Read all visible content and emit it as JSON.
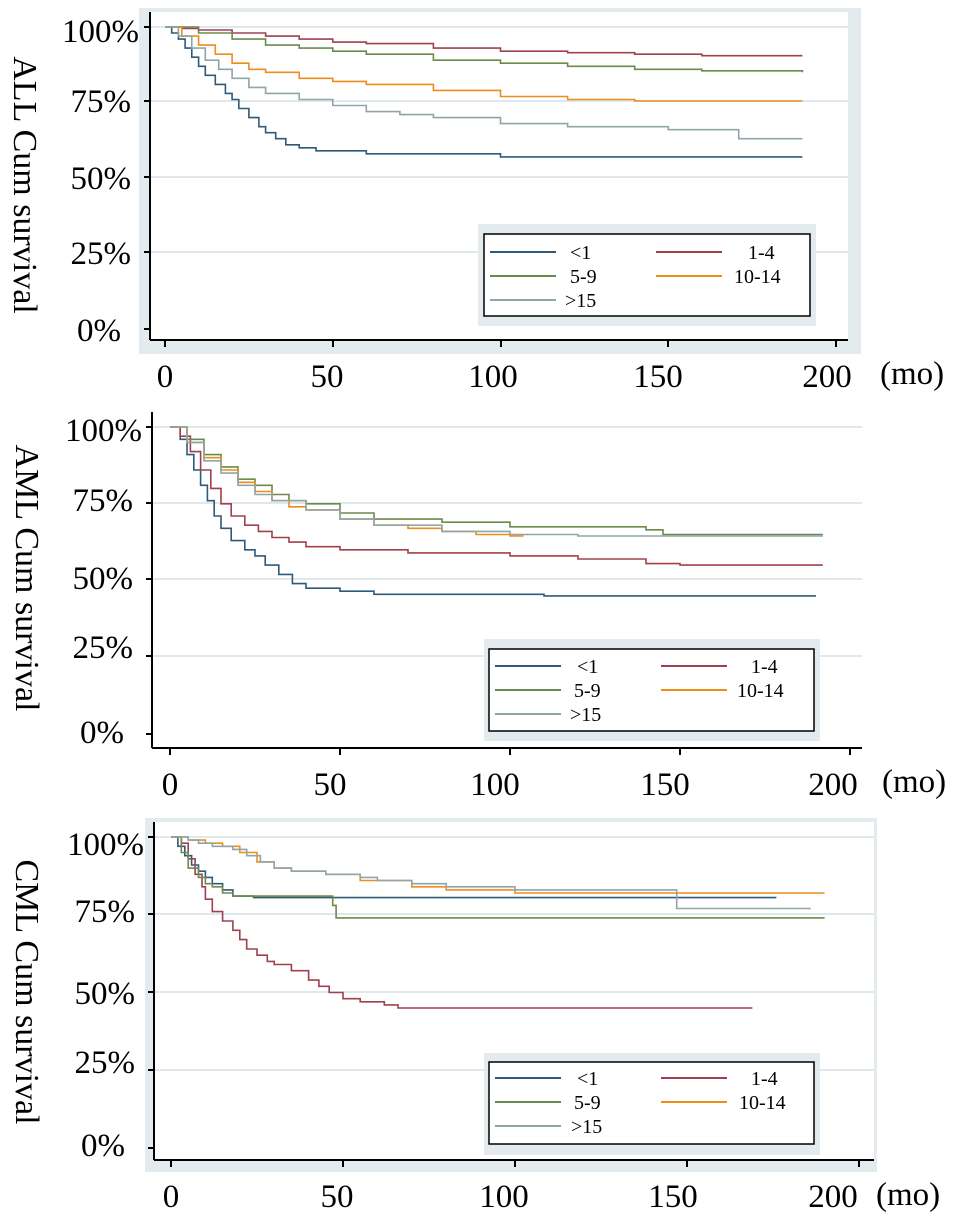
{
  "colors": {
    "frame_bg": "#e4ebee",
    "plot_bg": "#ffffff",
    "grid": "#dfe8eb",
    "axis": "#000000"
  },
  "chart_data": [
    {
      "type": "line",
      "step": true,
      "title": "",
      "ylabel": "ALL Cum survival",
      "xlabel": "",
      "x_unit": "(mo)",
      "xlim": [
        0,
        200
      ],
      "ylim": [
        0,
        100
      ],
      "x_ticks": [
        "0",
        "50",
        "100",
        "150",
        "200"
      ],
      "y_ticks": [
        "0%",
        "25%",
        "50%",
        "75%",
        "100%"
      ],
      "grid": true,
      "legend": {
        "position": "bottom-right",
        "columns": 2
      },
      "series": [
        {
          "name": "<1",
          "color": "#2f5a7a",
          "points": [
            [
              0,
              100
            ],
            [
              2,
              98
            ],
            [
              4,
              96
            ],
            [
              6,
              93
            ],
            [
              8,
              90
            ],
            [
              10,
              87
            ],
            [
              12,
              84
            ],
            [
              15,
              81
            ],
            [
              18,
              78
            ],
            [
              20,
              76
            ],
            [
              22,
              73
            ],
            [
              25,
              70
            ],
            [
              28,
              67
            ],
            [
              30,
              65
            ],
            [
              33,
              63
            ],
            [
              36,
              61
            ],
            [
              40,
              60
            ],
            [
              45,
              59
            ],
            [
              60,
              58
            ],
            [
              100,
              57
            ],
            [
              190,
              57
            ]
          ]
        },
        {
          "name": "1-4",
          "color": "#a0404f",
          "points": [
            [
              0,
              100
            ],
            [
              5,
              99.5
            ],
            [
              10,
              99
            ],
            [
              20,
              98
            ],
            [
              30,
              97
            ],
            [
              40,
              96
            ],
            [
              50,
              95
            ],
            [
              60,
              94.5
            ],
            [
              80,
              93
            ],
            [
              100,
              92
            ],
            [
              120,
              91.5
            ],
            [
              140,
              91
            ],
            [
              160,
              90.5
            ],
            [
              190,
              90.5
            ]
          ]
        },
        {
          "name": "5-9",
          "color": "#6b8a4b",
          "points": [
            [
              0,
              100
            ],
            [
              10,
              98
            ],
            [
              20,
              96
            ],
            [
              30,
              94
            ],
            [
              40,
              93
            ],
            [
              50,
              92
            ],
            [
              60,
              91
            ],
            [
              80,
              89
            ],
            [
              100,
              88
            ],
            [
              120,
              87
            ],
            [
              140,
              86
            ],
            [
              160,
              85.5
            ],
            [
              190,
              85
            ]
          ]
        },
        {
          "name": "10-14",
          "color": "#ee8c1c",
          "points": [
            [
              0,
              100
            ],
            [
              5,
              97
            ],
            [
              10,
              94
            ],
            [
              15,
              91
            ],
            [
              20,
              88
            ],
            [
              25,
              86
            ],
            [
              30,
              85
            ],
            [
              40,
              83
            ],
            [
              50,
              82
            ],
            [
              60,
              81
            ],
            [
              80,
              79
            ],
            [
              100,
              77
            ],
            [
              120,
              76
            ],
            [
              140,
              75.5
            ],
            [
              190,
              75.5
            ]
          ]
        },
        {
          "name": ">15",
          "color": "#8fa6a8",
          "points": [
            [
              0,
              100
            ],
            [
              4,
              97
            ],
            [
              8,
              93
            ],
            [
              12,
              89
            ],
            [
              16,
              86
            ],
            [
              20,
              83
            ],
            [
              25,
              80
            ],
            [
              30,
              78
            ],
            [
              40,
              76
            ],
            [
              50,
              74
            ],
            [
              60,
              72
            ],
            [
              70,
              71
            ],
            [
              80,
              70
            ],
            [
              100,
              68
            ],
            [
              120,
              67
            ],
            [
              150,
              66
            ],
            [
              170,
              66
            ],
            [
              171,
              63
            ],
            [
              190,
              63
            ]
          ]
        }
      ]
    },
    {
      "type": "line",
      "step": true,
      "title": "",
      "ylabel": "AML Cum survival",
      "xlabel": "",
      "x_unit": "(mo)",
      "xlim": [
        0,
        200
      ],
      "ylim": [
        0,
        100
      ],
      "x_ticks": [
        "0",
        "50",
        "100",
        "150",
        "200"
      ],
      "y_ticks": [
        "0%",
        "25%",
        "50%",
        "75%",
        "100%"
      ],
      "grid": true,
      "legend": {
        "position": "bottom-right",
        "columns": 2
      },
      "series": [
        {
          "name": "<1",
          "color": "#2f5a7a",
          "points": [
            [
              0,
              100
            ],
            [
              3,
              96
            ],
            [
              5,
              91
            ],
            [
              7,
              86
            ],
            [
              9,
              81
            ],
            [
              11,
              76
            ],
            [
              13,
              71
            ],
            [
              15,
              67
            ],
            [
              18,
              63
            ],
            [
              22,
              60
            ],
            [
              25,
              58
            ],
            [
              28,
              55
            ],
            [
              32,
              52
            ],
            [
              36,
              49
            ],
            [
              40,
              47.5
            ],
            [
              50,
              46.5
            ],
            [
              60,
              45.5
            ],
            [
              110,
              45
            ],
            [
              190,
              45
            ]
          ]
        },
        {
          "name": "1-4",
          "color": "#a0404f",
          "points": [
            [
              0,
              100
            ],
            [
              3,
              97
            ],
            [
              6,
              92
            ],
            [
              9,
              86
            ],
            [
              12,
              80
            ],
            [
              15,
              75
            ],
            [
              18,
              71
            ],
            [
              22,
              68
            ],
            [
              26,
              66
            ],
            [
              30,
              64
            ],
            [
              35,
              62.5
            ],
            [
              40,
              61
            ],
            [
              50,
              60
            ],
            [
              70,
              59
            ],
            [
              100,
              58
            ],
            [
              120,
              57
            ],
            [
              140,
              55.5
            ],
            [
              150,
              55
            ],
            [
              192,
              55
            ]
          ]
        },
        {
          "name": "5-9",
          "color": "#6b8a4b",
          "points": [
            [
              0,
              100
            ],
            [
              5,
              96
            ],
            [
              10,
              91
            ],
            [
              15,
              87
            ],
            [
              20,
              83
            ],
            [
              25,
              81
            ],
            [
              30,
              78
            ],
            [
              35,
              76
            ],
            [
              40,
              75
            ],
            [
              50,
              72
            ],
            [
              60,
              70
            ],
            [
              80,
              69
            ],
            [
              100,
              67.5
            ],
            [
              140,
              66.5
            ],
            [
              145,
              65
            ],
            [
              192,
              65
            ]
          ]
        },
        {
          "name": "10-14",
          "color": "#ee8c1c",
          "points": [
            [
              0,
              100
            ],
            [
              5,
              95
            ],
            [
              10,
              90
            ],
            [
              15,
              86
            ],
            [
              20,
              82
            ],
            [
              25,
              79
            ],
            [
              30,
              76
            ],
            [
              35,
              74
            ],
            [
              40,
              73
            ],
            [
              50,
              70
            ],
            [
              60,
              68
            ],
            [
              70,
              67
            ],
            [
              80,
              66
            ],
            [
              90,
              65
            ],
            [
              100,
              64.5
            ],
            [
              104,
              64.5
            ]
          ]
        },
        {
          "name": ">15",
          "color": "#8fa6a8",
          "points": [
            [
              0,
              100
            ],
            [
              5,
              95
            ],
            [
              10,
              89
            ],
            [
              15,
              85
            ],
            [
              20,
              81
            ],
            [
              25,
              78
            ],
            [
              30,
              76
            ],
            [
              40,
              73
            ],
            [
              50,
              70
            ],
            [
              60,
              68
            ],
            [
              80,
              66
            ],
            [
              100,
              65
            ],
            [
              120,
              64.5
            ],
            [
              192,
              64.5
            ]
          ]
        }
      ]
    },
    {
      "type": "line",
      "step": true,
      "title": "",
      "ylabel": "CML Cum survival",
      "xlabel": "",
      "x_unit": "(mo)",
      "xlim": [
        0,
        200
      ],
      "ylim": [
        0,
        100
      ],
      "x_ticks": [
        "0",
        "50",
        "100",
        "150",
        "200"
      ],
      "y_ticks": [
        "0%",
        "25%",
        "50%",
        "75%",
        "100%"
      ],
      "grid": true,
      "legend": {
        "position": "bottom-right",
        "columns": 2
      },
      "series": [
        {
          "name": "<1",
          "color": "#2f5a7a",
          "points": [
            [
              0,
              100
            ],
            [
              2,
              97
            ],
            [
              4,
              94
            ],
            [
              6,
              91
            ],
            [
              8,
              89
            ],
            [
              10,
              87
            ],
            [
              12,
              85
            ],
            [
              15,
              83
            ],
            [
              18,
              81
            ],
            [
              24,
              80.5
            ],
            [
              60,
              80.5
            ],
            [
              176,
              80.5
            ]
          ]
        },
        {
          "name": "1-4",
          "color": "#a0404f",
          "points": [
            [
              0,
              100
            ],
            [
              3,
              98
            ],
            [
              5,
              93
            ],
            [
              7,
              88
            ],
            [
              9,
              84
            ],
            [
              10,
              80
            ],
            [
              12,
              76
            ],
            [
              15,
              73
            ],
            [
              18,
              70
            ],
            [
              20,
              67
            ],
            [
              22,
              64
            ],
            [
              25,
              62
            ],
            [
              28,
              60
            ],
            [
              30,
              59
            ],
            [
              35,
              57
            ],
            [
              40,
              54
            ],
            [
              43,
              52
            ],
            [
              46,
              50
            ],
            [
              50,
              48
            ],
            [
              55,
              47
            ],
            [
              62,
              46
            ],
            [
              66,
              45
            ],
            [
              169,
              45
            ]
          ]
        },
        {
          "name": "5-9",
          "color": "#6b8a4b",
          "points": [
            [
              0,
              100
            ],
            [
              3,
              95
            ],
            [
              5,
              90
            ],
            [
              8,
              87
            ],
            [
              10,
              85
            ],
            [
              12,
              84
            ],
            [
              15,
              82
            ],
            [
              18,
              81
            ],
            [
              46,
              81
            ],
            [
              47,
              78
            ],
            [
              48,
              74
            ],
            [
              190,
              74
            ]
          ]
        },
        {
          "name": "10-14",
          "color": "#ee8c1c",
          "points": [
            [
              0,
              100
            ],
            [
              5,
              99
            ],
            [
              10,
              98
            ],
            [
              15,
              97
            ],
            [
              20,
              95
            ],
            [
              25,
              92
            ],
            [
              30,
              90
            ],
            [
              35,
              89
            ],
            [
              45,
              88
            ],
            [
              55,
              86
            ],
            [
              70,
              84
            ],
            [
              80,
              83
            ],
            [
              100,
              82
            ],
            [
              190,
              82
            ]
          ]
        },
        {
          "name": ">15",
          "color": "#8fa6a8",
          "points": [
            [
              0,
              100
            ],
            [
              5,
              99
            ],
            [
              8,
              98
            ],
            [
              12,
              97
            ],
            [
              18,
              96
            ],
            [
              22,
              94
            ],
            [
              26,
              92
            ],
            [
              30,
              90
            ],
            [
              35,
              89
            ],
            [
              45,
              88
            ],
            [
              55,
              87
            ],
            [
              60,
              86
            ],
            [
              70,
              85
            ],
            [
              80,
              84
            ],
            [
              100,
              83
            ],
            [
              146,
              83
            ],
            [
              147,
              77
            ],
            [
              186,
              77
            ]
          ]
        }
      ]
    }
  ]
}
